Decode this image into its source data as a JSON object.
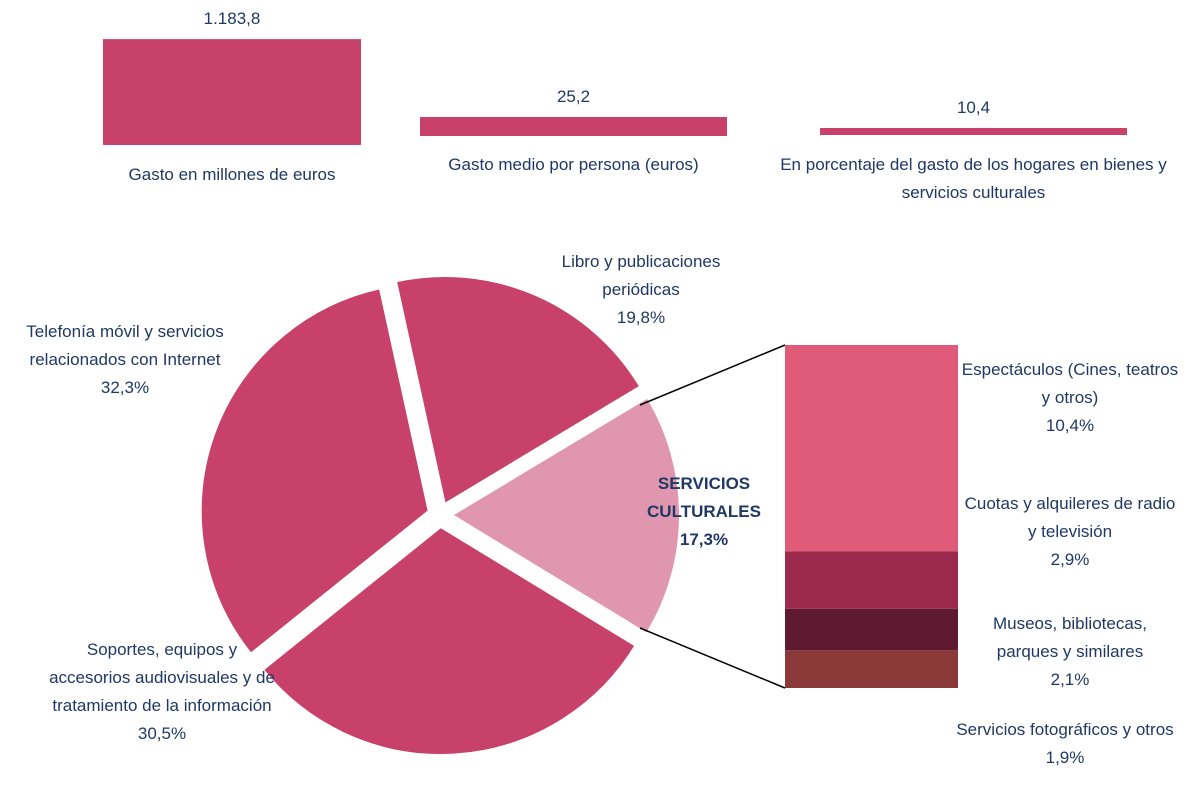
{
  "chart_data": [
    {
      "type": "bar",
      "categories": [
        "Gasto en millones de euros"
      ],
      "values": [
        1183.8
      ],
      "value_labels": [
        "1.183,8"
      ],
      "color": "#c8416a",
      "ylim": [
        0,
        1230
      ]
    },
    {
      "type": "bar",
      "categories": [
        "Gasto medio por persona (euros)"
      ],
      "values": [
        25.2
      ],
      "value_labels": [
        "25,2"
      ],
      "color": "#c8416a",
      "ylim": [
        0,
        146
      ]
    },
    {
      "type": "bar",
      "categories": [
        "En porcentaje del gasto de los hogares en bienes y servicios culturales"
      ],
      "values": [
        10.4
      ],
      "value_labels": [
        "10,4"
      ],
      "color": "#c8416a",
      "ylim": [
        0,
        163
      ]
    },
    {
      "type": "pie",
      "categories": [
        "SERVICIOS CULTURALES",
        "Soportes, equipos y accesorios audiovisuales y de tratamiento de la información",
        "Telefonía móvil y servicios relacionados con Internet",
        "Libro y publicaciones periódicas"
      ],
      "values": [
        17.3,
        30.5,
        32.3,
        19.8
      ],
      "value_labels": [
        "17,3%",
        "30,5%",
        "32,3%",
        "19,8%"
      ],
      "colors": [
        "#e096ae",
        "#c8416a",
        "#c8416a",
        "#c8416a"
      ]
    },
    {
      "type": "stacked-bar",
      "ylim": [
        0,
        17.3
      ],
      "series": [
        {
          "name": "Servicios fotográficos y otros",
          "color": "#8a3838",
          "values": [
            1.9
          ],
          "value_labels": [
            "1,9%"
          ]
        },
        {
          "name": "Museos, bibliotecas, parques y similares",
          "color": "#5e1a30",
          "values": [
            2.1
          ],
          "value_labels": [
            "2,1%"
          ]
        },
        {
          "name": "Cuotas y alquileres de radio y televisión",
          "color": "#9c2a4e",
          "values": [
            2.9
          ],
          "value_labels": [
            "2,9%"
          ]
        },
        {
          "name": "Espectáculos (Cines, teatros y otros)",
          "color": "#e05a7a",
          "values": [
            10.4
          ],
          "value_labels": [
            "10,4%"
          ]
        }
      ]
    }
  ]
}
